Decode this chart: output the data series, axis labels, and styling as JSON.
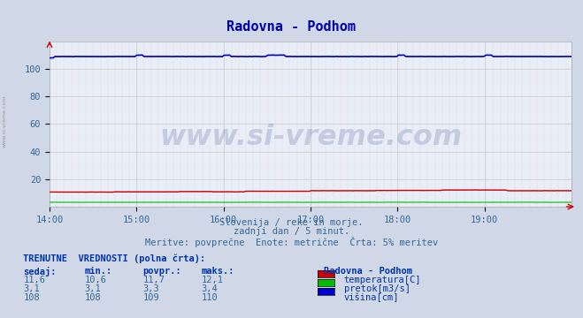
{
  "title": "Radovna - Podhom",
  "bg_color": "#d0d8e8",
  "plot_bg_color": "#e8eef8",
  "subtitle1": "Slovenija / reke in morje.",
  "subtitle2": "zadnji dan / 5 minut.",
  "subtitle3": "Meritve: povprečne  Enote: metrične  Črta: 5% meritev",
  "watermark": "www.si-vreme.com",
  "legend_title": "Radovna - Podhom",
  "legend_items": [
    {
      "label": "temperatura[C]",
      "color": "#cc0000"
    },
    {
      "label": "pretok[m3/s]",
      "color": "#00bb00"
    },
    {
      "label": "višina[cm]",
      "color": "#0000cc"
    }
  ],
  "table_label": "TRENUTNE  VREDNOSTI (polna črta):",
  "table_headers": [
    "sedaj:",
    "min.:",
    "povpr.:",
    "maks.:"
  ],
  "table_data": [
    [
      "11,6",
      "10,6",
      "11,7",
      "12,1"
    ],
    [
      "3,1",
      "3,1",
      "3,3",
      "3,4"
    ],
    [
      "108",
      "108",
      "109",
      "110"
    ]
  ],
  "ylim": [
    0,
    120
  ],
  "yticks": [
    20,
    40,
    60,
    80,
    100
  ],
  "n_points": 288,
  "x_tick_labels": [
    "14:00",
    "15:00",
    "16:00",
    "17:00",
    "18:00",
    "19:00"
  ]
}
